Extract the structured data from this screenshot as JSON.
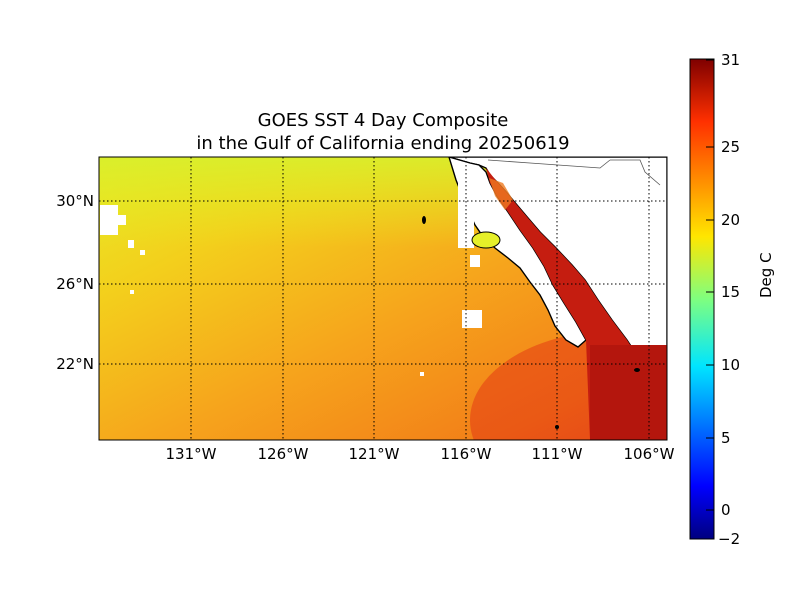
{
  "map": {
    "title_line1": "GOES SST 4 Day Composite",
    "title_line2": "in the Gulf of California ending 20250619",
    "lat_labels": [
      "30°N",
      "26°N",
      "22°N"
    ],
    "lon_labels": [
      "131°W",
      "126°W",
      "121°W",
      "116°W",
      "111°W",
      "106°W"
    ],
    "colors": {
      "ocean_warm": "#f4a21a",
      "ocean_yellow": "#e9e81e",
      "gulf_red": "#c41d0f",
      "land": "#ffffff",
      "coast": "#000000"
    }
  },
  "colorbar": {
    "label": "Deg C",
    "ticks": [
      "31",
      "25",
      "20",
      "15",
      "10",
      "5",
      "0",
      "−2"
    ],
    "range": [
      -2,
      31
    ],
    "colormap": "jet"
  }
}
